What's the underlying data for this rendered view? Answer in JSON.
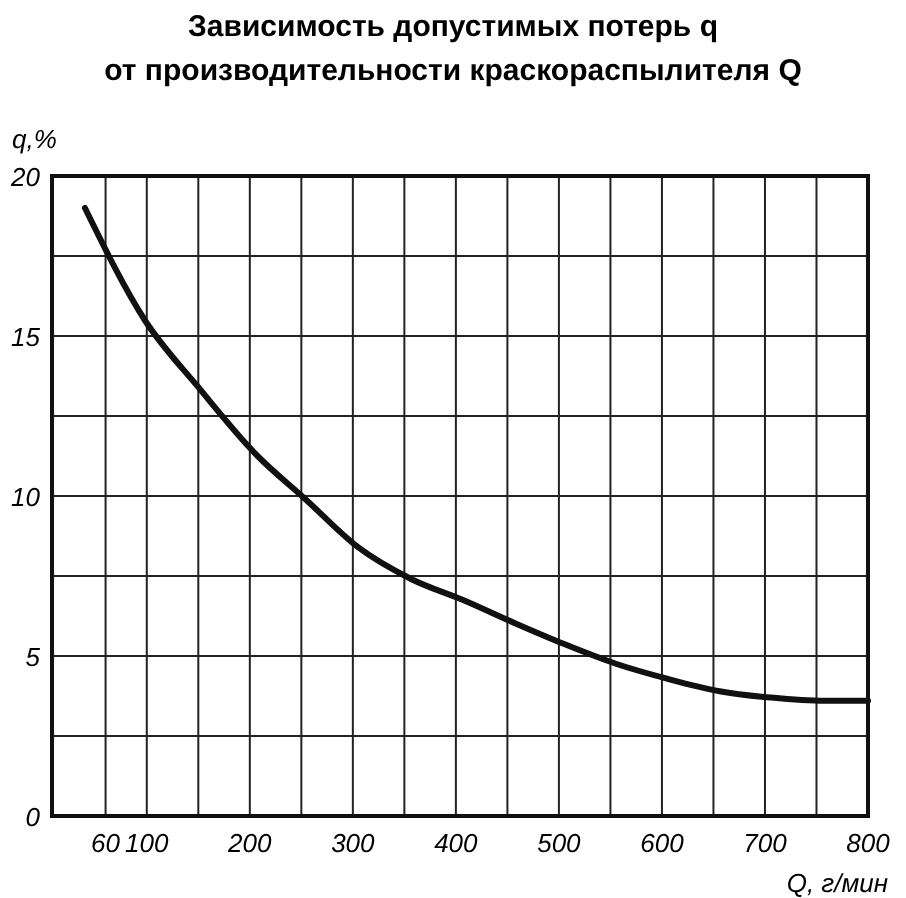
{
  "chart_data": {
    "type": "line",
    "title": "Зависимость допустимых потерь q\nот производительности краскораспылителя Q",
    "xlabel": "Q, г/мин",
    "ylabel": "q,%",
    "x": [
      40,
      98,
      150,
      206,
      254,
      305,
      357,
      407,
      459,
      503,
      556,
      604,
      656,
      706,
      758,
      800
    ],
    "series": [
      {
        "color": "#111111",
        "values": [
          19,
          15.5,
          13.4,
          11.3,
          9.9,
          8.4,
          7.4,
          6.75,
          6,
          5.4,
          4.75,
          4.3,
          3.9,
          3.7,
          3.6,
          3.6
        ]
      }
    ],
    "xlim": [
      8,
      800
    ],
    "xticks": [
      60,
      100,
      {
        "value": 150,
        "label": null
      },
      200,
      {
        "value": 250,
        "label": null
      },
      300,
      {
        "value": 350,
        "label": null
      },
      400,
      {
        "value": 450,
        "label": null
      },
      500,
      {
        "value": 550,
        "label": null
      },
      600,
      {
        "value": 650,
        "label": null
      },
      700,
      {
        "value": 750,
        "label": null
      },
      800
    ],
    "ylim": [
      0,
      20
    ],
    "yticks": [
      0,
      {
        "value": 2.5,
        "label": null
      },
      5,
      {
        "value": 7.5,
        "label": null
      },
      10,
      {
        "value": 12.5,
        "label": null
      },
      15,
      {
        "value": 17.5,
        "label": null
      },
      20
    ],
    "grid": true,
    "marker": "none",
    "line_style": "solid"
  }
}
